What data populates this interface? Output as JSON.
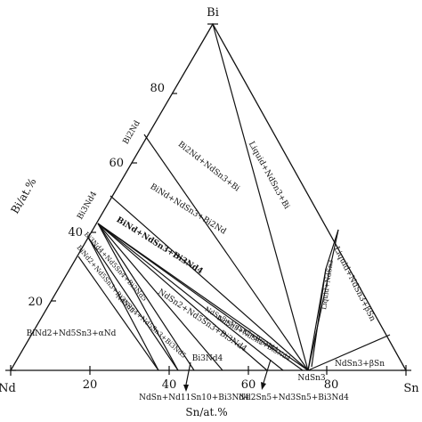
{
  "vertices": {
    "top": "Bi",
    "left": "Nd",
    "right": "Sn"
  },
  "compounds": {
    "bi2nd": "Bi2Nd",
    "bi3nd4": "Bi3Nd4",
    "ndsn3": "NdSn3"
  },
  "axes": {
    "bi_title": "Bi/at.%",
    "sn_title": "Sn/at.%",
    "bi_ticks": [
      "20",
      "40",
      "60",
      "80"
    ],
    "sn_ticks": [
      "20",
      "40",
      "60",
      "80"
    ]
  },
  "phase_regions": {
    "liquid_ndsn3_bi": "Liquid+NdSn3+Bi",
    "bi2nd_ndsn3_bi": "Bi2Nd+NdSn3+Bi",
    "bind_ndsn3_bi2nd": "BiNd+NdSn3+Bi2Nd",
    "bind_ndsn3_bi3nd4": "BiNd+NdSn3+Bi3Nd4",
    "liquid_ndsn3_alt": "Liquid+NdSn3",
    "liquid_ndsn3_betasn": "Liquid+NdSn3+βSn",
    "ndsn3_betasn": "NdSn3+βSn",
    "bi3nd4_nd5sn4_bi3nd5": "Bi3Nd4+Nd5Sn4+Bi3Nd5",
    "bind2_nd5sn3_bi3nd5": "BiNd2+Nd5Sn3+Bi3Nd5",
    "nd5sn4_nd5sn3_bi3nd5": "Nd5Sn4+Nd5Sn3+Bi3Nd5",
    "bind2_nd5sn3_alphand": "BiNd2+Nd5Sn3+αNd",
    "ndsn2_nd5sn3_bi3nd4": "NdSn2+Nd5Sn3+Bi3Nd4",
    "ndsn3_ndsn2_bi3nd4": "NdSn3+NdSn2+Bi3Nd4",
    "ndsn3_ndsn2_bi3nd4_b": "NdSn3+NdSn2+Bi3Nd4",
    "bi3nd4_label": "Bi3Nd4",
    "ndsn_nd11sn10_bi3nd4": "NdSn+Nd11Sn10+Bi3Nd4",
    "nd2sn5_nd3sn5_bi3nd4": "Nd2Sn5+Nd3Sn5+Bi3Nd4"
  }
}
